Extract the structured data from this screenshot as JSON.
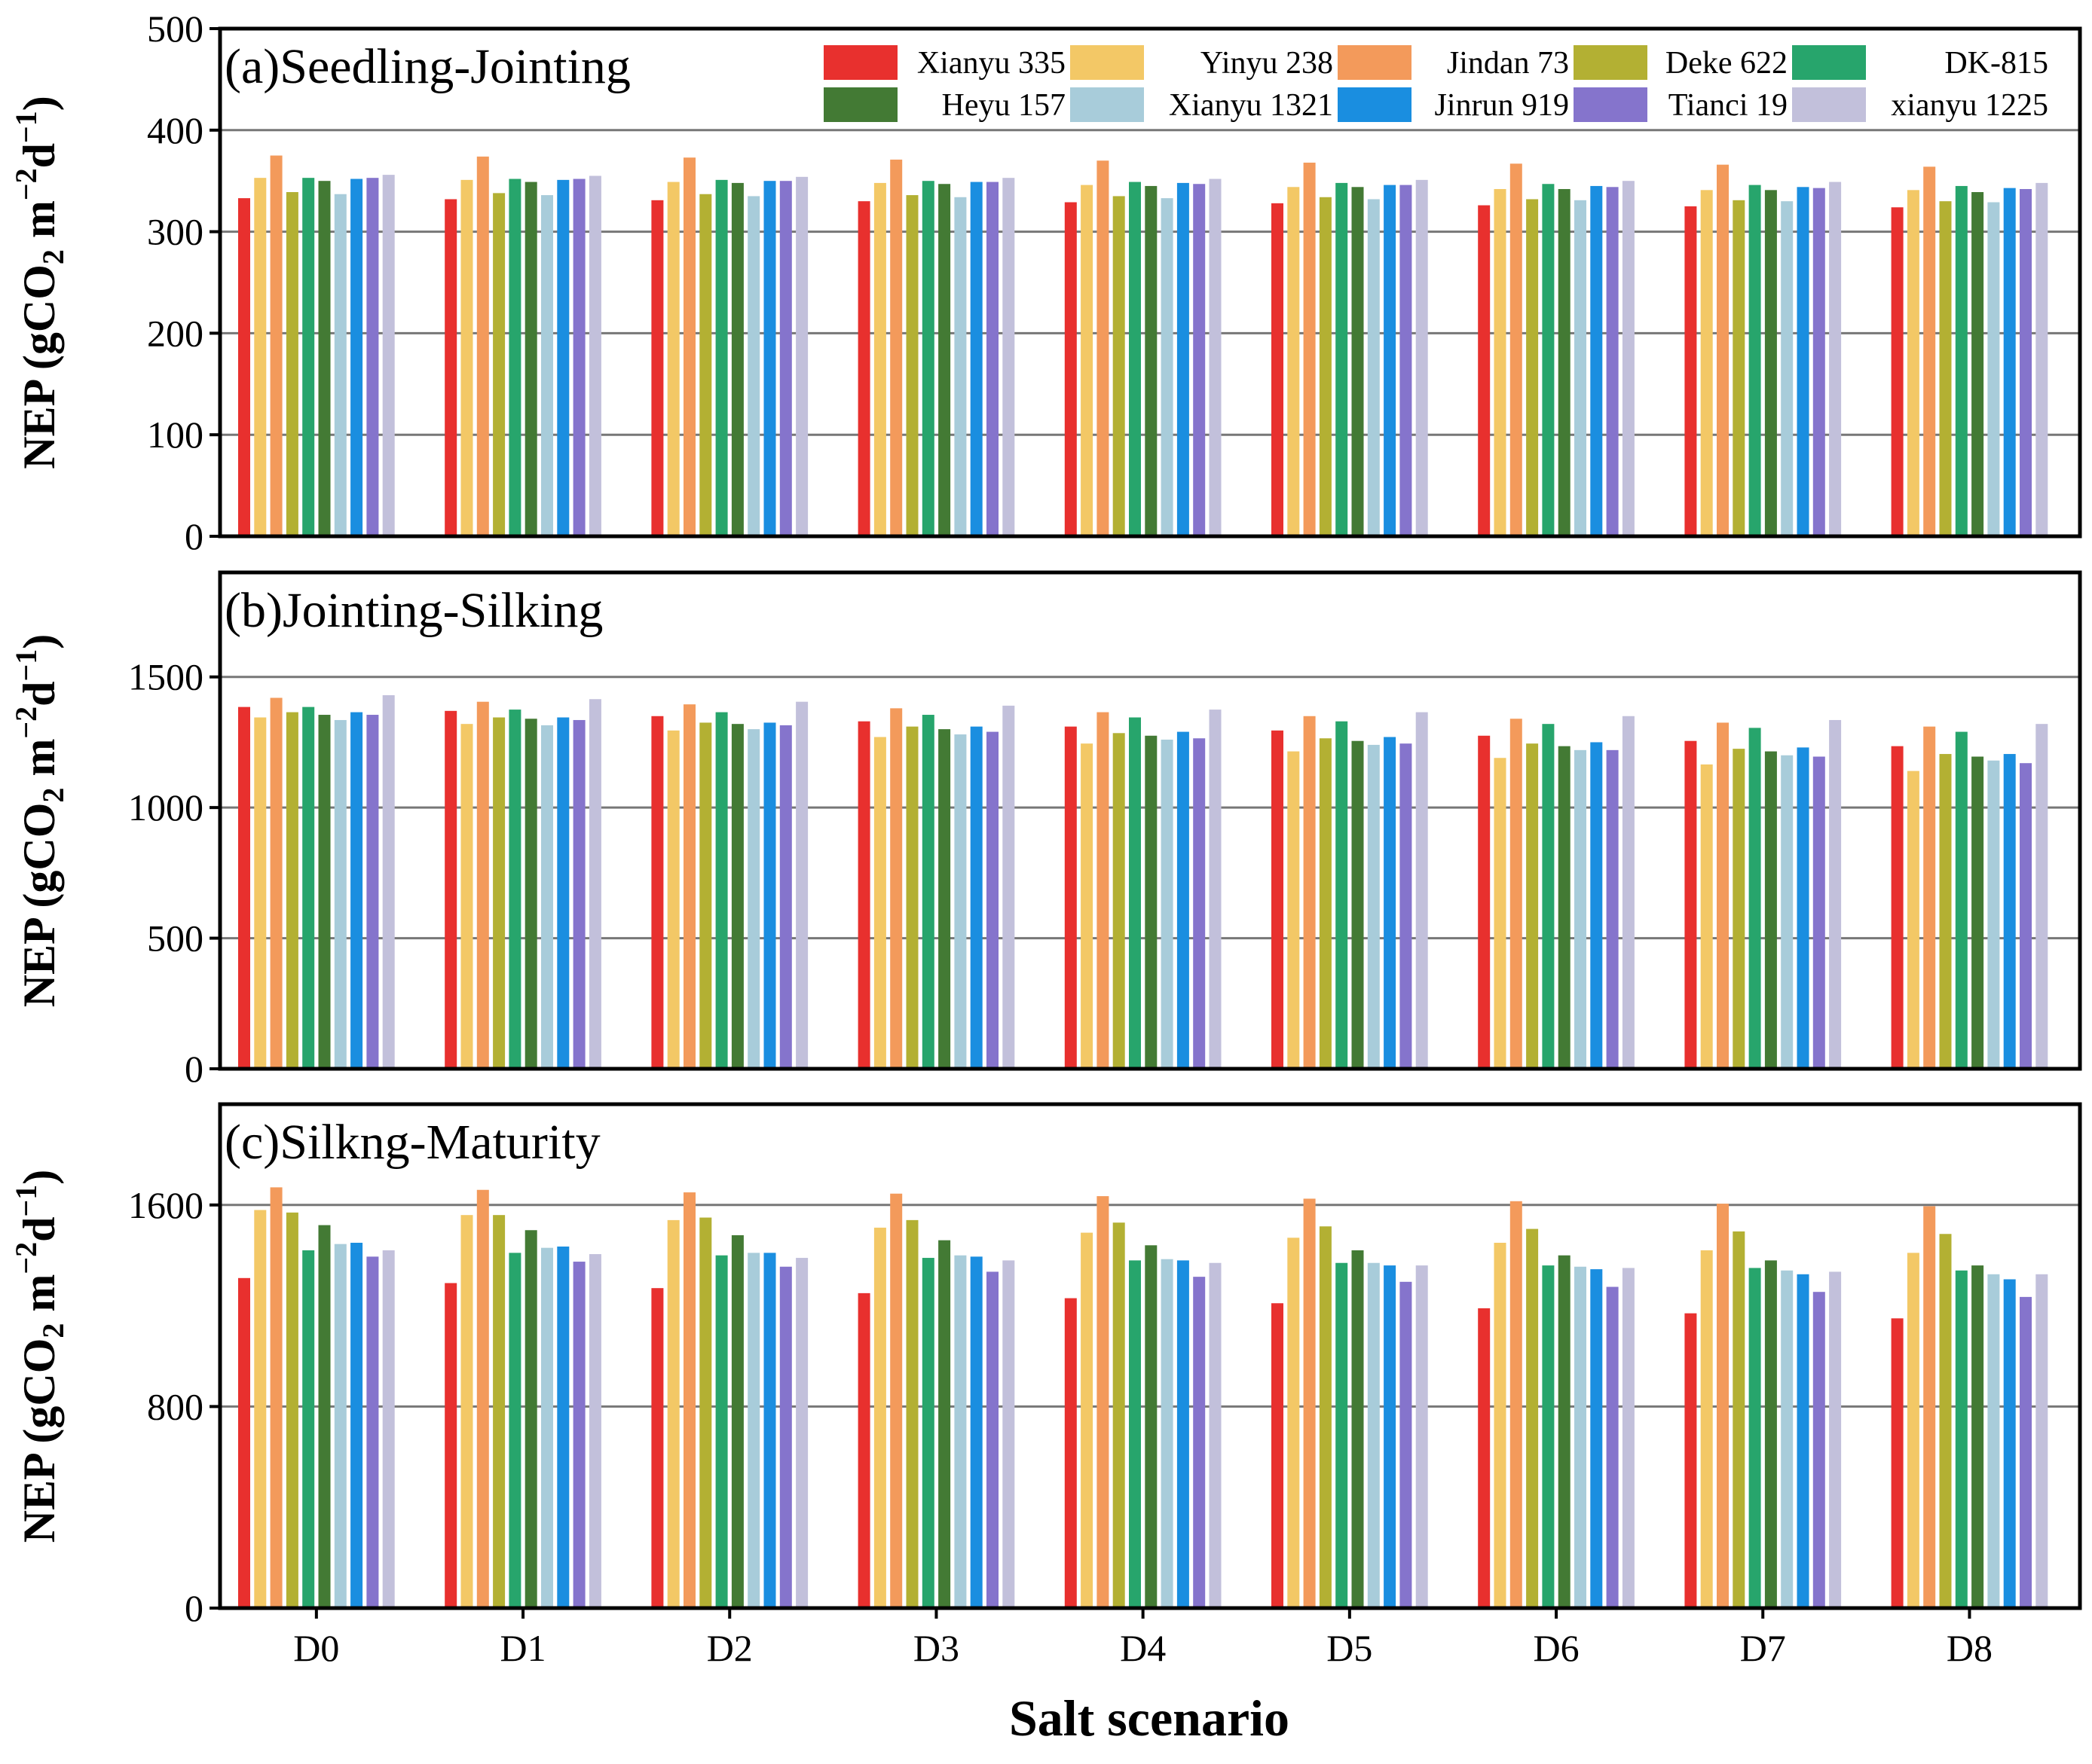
{
  "chart_data": {
    "type": "bar",
    "xlabel": "Salt scenario",
    "categories": [
      "D0",
      "D1",
      "D2",
      "D3",
      "D4",
      "D5",
      "D6",
      "D7",
      "D8"
    ],
    "ylabel": {
      "main": "NEP (gCO",
      "sub": "2",
      "unit1": " m",
      "sup1": "−2",
      "unit2": "d",
      "sup2": "−1",
      "close": ")"
    },
    "grid": true,
    "legend": {
      "placement": "top-right",
      "entries": [
        {
          "name": "Xianyu 335",
          "color": "#e8302e"
        },
        {
          "name": "Yinyu 238",
          "color": "#f3c866"
        },
        {
          "name": "Jindan 73",
          "color": "#f39a5b"
        },
        {
          "name": "Deke 622",
          "color": "#b3b033"
        },
        {
          "name": "DK-815",
          "color": "#27a56c"
        },
        {
          "name": "Heyu 157",
          "color": "#437a34"
        },
        {
          "name": "Xianyu 1321",
          "color": "#a8ccda"
        },
        {
          "name": "Jinrun 919",
          "color": "#1a8ee0"
        },
        {
          "name": "Tianci 19",
          "color": "#8574cc"
        },
        {
          "name": "xianyu 1225",
          "color": "#c2c0db"
        }
      ]
    },
    "panels": [
      {
        "title": "(a)Seedling-Jointing",
        "ylim": [
          0,
          500
        ],
        "yticks": [
          0,
          100,
          200,
          300,
          400,
          500
        ],
        "series": [
          {
            "name": "Xianyu 335",
            "values": [
              333,
              332,
              331,
              330,
              329,
              328,
              326,
              325,
              324
            ]
          },
          {
            "name": "Yinyu 238",
            "values": [
              353,
              351,
              349,
              348,
              346,
              344,
              342,
              341,
              341
            ]
          },
          {
            "name": "Jindan 73",
            "values": [
              375,
              374,
              373,
              371,
              370,
              368,
              367,
              366,
              364
            ]
          },
          {
            "name": "Deke 622",
            "values": [
              339,
              338,
              337,
              336,
              335,
              334,
              332,
              331,
              330
            ]
          },
          {
            "name": "DK-815",
            "values": [
              353,
              352,
              351,
              350,
              349,
              348,
              347,
              346,
              345
            ]
          },
          {
            "name": "Heyu 157",
            "values": [
              350,
              349,
              348,
              347,
              345,
              344,
              342,
              341,
              339
            ]
          },
          {
            "name": "Xianyu 1321",
            "values": [
              337,
              336,
              335,
              334,
              333,
              332,
              331,
              330,
              329
            ]
          },
          {
            "name": "Jinrun 919",
            "values": [
              352,
              351,
              350,
              349,
              348,
              346,
              345,
              344,
              343
            ]
          },
          {
            "name": "Tianci 19",
            "values": [
              353,
              352,
              350,
              349,
              347,
              346,
              344,
              343,
              342
            ]
          },
          {
            "name": "xianyu 1225",
            "values": [
              356,
              355,
              354,
              353,
              352,
              351,
              350,
              349,
              348
            ]
          }
        ]
      },
      {
        "title": "(b)Jointing-Silking",
        "ylim": [
          0,
          1900
        ],
        "yticks": [
          0,
          500,
          1000,
          1500
        ],
        "series": [
          {
            "name": "Xianyu 335",
            "values": [
              1385,
              1370,
              1350,
              1330,
              1310,
              1295,
              1275,
              1255,
              1235
            ]
          },
          {
            "name": "Yinyu 238",
            "values": [
              1345,
              1320,
              1295,
              1270,
              1245,
              1215,
              1190,
              1165,
              1140
            ]
          },
          {
            "name": "Jindan 73",
            "values": [
              1420,
              1405,
              1395,
              1380,
              1365,
              1350,
              1340,
              1325,
              1310
            ]
          },
          {
            "name": "Deke 622",
            "values": [
              1365,
              1345,
              1325,
              1310,
              1285,
              1265,
              1245,
              1225,
              1205
            ]
          },
          {
            "name": "DK-815",
            "values": [
              1385,
              1375,
              1365,
              1355,
              1345,
              1330,
              1320,
              1305,
              1290
            ]
          },
          {
            "name": "Heyu 157",
            "values": [
              1355,
              1340,
              1320,
              1300,
              1275,
              1255,
              1235,
              1215,
              1195
            ]
          },
          {
            "name": "Xianyu 1321",
            "values": [
              1335,
              1315,
              1300,
              1280,
              1260,
              1240,
              1220,
              1200,
              1180
            ]
          },
          {
            "name": "Jinrun 919",
            "values": [
              1365,
              1345,
              1325,
              1310,
              1290,
              1270,
              1250,
              1230,
              1205
            ]
          },
          {
            "name": "Tianci 19",
            "values": [
              1355,
              1335,
              1315,
              1290,
              1265,
              1245,
              1220,
              1195,
              1170
            ]
          },
          {
            "name": "xianyu 1225",
            "values": [
              1430,
              1415,
              1405,
              1390,
              1375,
              1365,
              1350,
              1335,
              1320
            ]
          }
        ]
      },
      {
        "title": "(c)Silkng-Maturity",
        "ylim": [
          0,
          2000
        ],
        "yticks": [
          0,
          800,
          1600
        ],
        "series": [
          {
            "name": "Xianyu 335",
            "values": [
              1310,
              1290,
              1270,
              1250,
              1230,
              1210,
              1190,
              1170,
              1150
            ]
          },
          {
            "name": "Yinyu 238",
            "values": [
              1580,
              1560,
              1540,
              1510,
              1490,
              1470,
              1450,
              1420,
              1410
            ]
          },
          {
            "name": "Jindan 73",
            "values": [
              1670,
              1660,
              1650,
              1645,
              1635,
              1625,
              1615,
              1605,
              1595
            ]
          },
          {
            "name": "Deke 622",
            "values": [
              1570,
              1560,
              1550,
              1540,
              1530,
              1515,
              1505,
              1495,
              1485
            ]
          },
          {
            "name": "DK-815",
            "values": [
              1420,
              1410,
              1400,
              1390,
              1380,
              1370,
              1360,
              1350,
              1340
            ]
          },
          {
            "name": "Heyu 157",
            "values": [
              1520,
              1500,
              1480,
              1460,
              1440,
              1420,
              1400,
              1380,
              1360
            ]
          },
          {
            "name": "Xianyu 1321",
            "values": [
              1445,
              1430,
              1410,
              1400,
              1385,
              1370,
              1355,
              1340,
              1325
            ]
          },
          {
            "name": "Jinrun 919",
            "values": [
              1450,
              1435,
              1410,
              1395,
              1380,
              1360,
              1345,
              1325,
              1305
            ]
          },
          {
            "name": "Tianci 19",
            "values": [
              1395,
              1375,
              1355,
              1335,
              1315,
              1295,
              1275,
              1255,
              1235
            ]
          },
          {
            "name": "xianyu 1225",
            "values": [
              1420,
              1405,
              1390,
              1380,
              1370,
              1360,
              1350,
              1335,
              1325
            ]
          }
        ]
      }
    ]
  }
}
